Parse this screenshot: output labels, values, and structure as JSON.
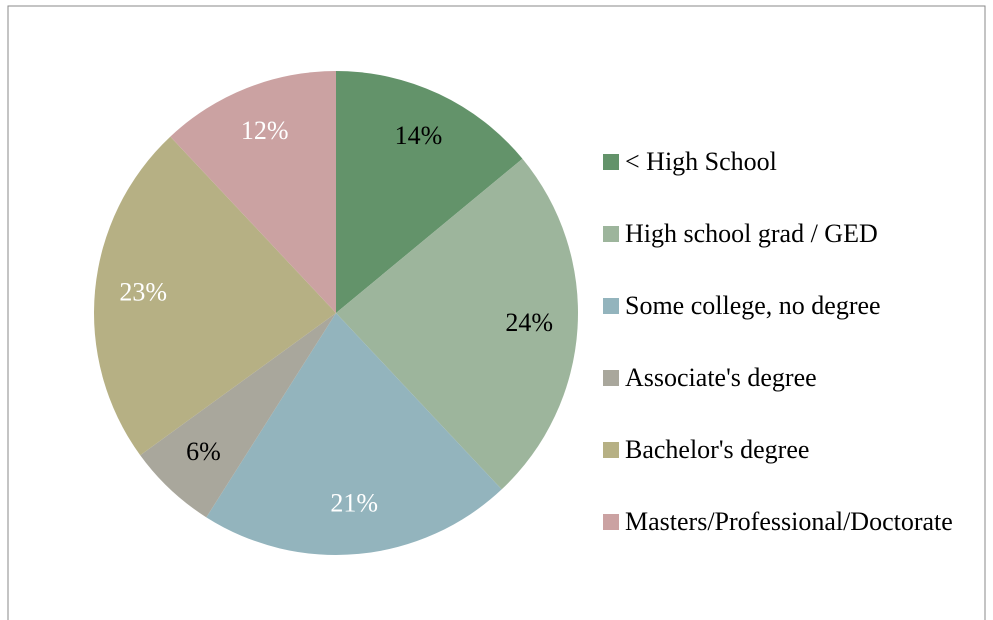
{
  "chart_data": {
    "type": "pie",
    "categories": [
      "< High School",
      "High school grad / GED",
      "Some college, no degree",
      "Associate's degree",
      "Bachelor's degree",
      "Masters/Professional/Doctorate"
    ],
    "values": [
      14,
      24,
      21,
      6,
      23,
      12
    ],
    "value_labels": [
      "14%",
      "24%",
      "21%",
      "6%",
      "23%",
      "12%"
    ],
    "colors": [
      "#63936a",
      "#9db59c",
      "#93b4bd",
      "#a9a79c",
      "#b6b084",
      "#cba2a2"
    ],
    "label_colors": [
      "#000000",
      "#000000",
      "#ffffff",
      "#000000",
      "#ffffff",
      "#ffffff"
    ],
    "legend": "right"
  }
}
